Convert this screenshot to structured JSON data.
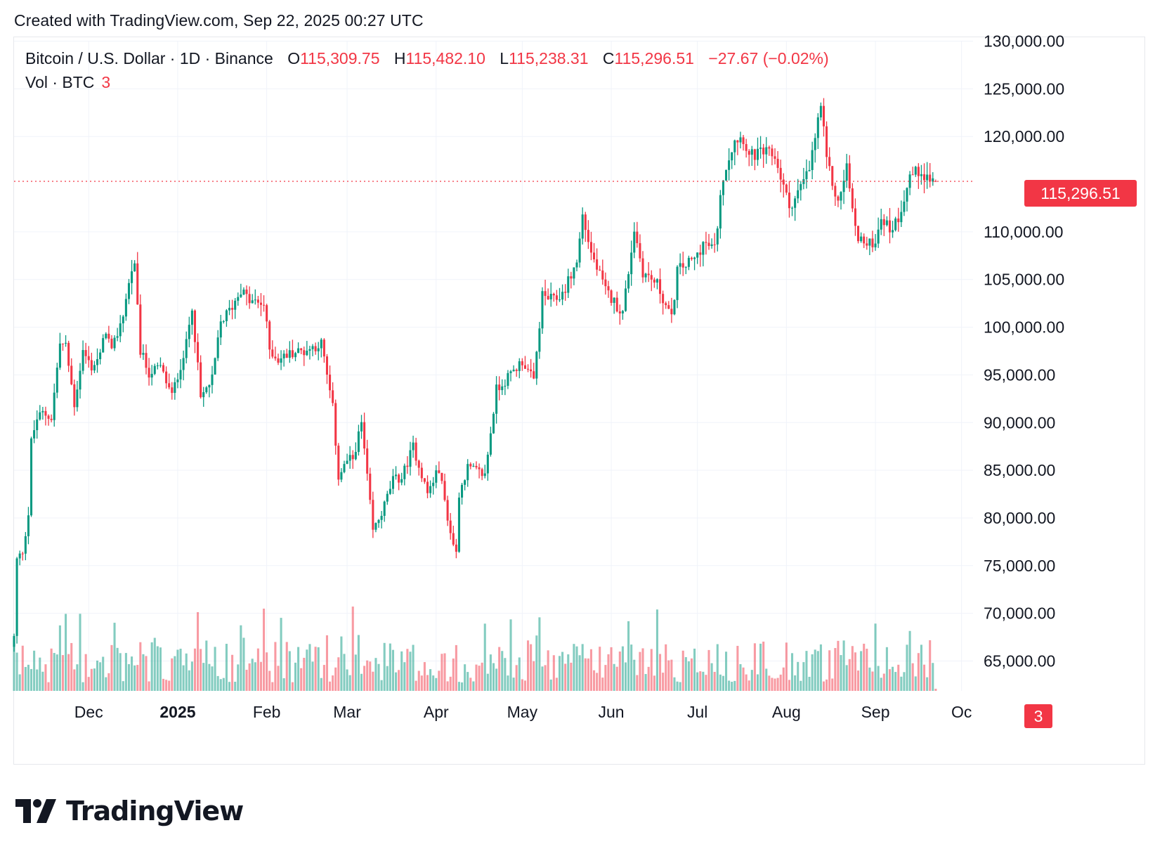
{
  "header": {
    "created_text": "Created with TradingView.com, Sep 22, 2025 00:27 UTC"
  },
  "legend": {
    "symbol": "Bitcoin / U.S. Dollar · 1D · Binance",
    "open_label": "O",
    "open": "115,309.75",
    "high_label": "H",
    "high": "115,482.10",
    "low_label": "L",
    "low": "115,238.31",
    "close_label": "C",
    "close": "115,296.51",
    "change": "−27.67 (−0.02%)",
    "vol_label": "Vol · BTC",
    "vol_value": "3"
  },
  "tags": {
    "last_price": "115,296.51",
    "last_volume": "3"
  },
  "logo": {
    "text": "TradingView"
  },
  "colors": {
    "up": "#089981",
    "down": "#f23645",
    "grid": "#f0f3fa",
    "text": "#131722"
  },
  "chart_data": {
    "type": "candlestick",
    "ylim": [
      65000,
      130000
    ],
    "y_ticks": [
      {
        "value": 130000,
        "label": "130,000.00"
      },
      {
        "value": 125000,
        "label": "125,000.00"
      },
      {
        "value": 120000,
        "label": "120,000.00"
      },
      {
        "value": 110000,
        "label": "110,000.00"
      },
      {
        "value": 105000,
        "label": "105,000.00"
      },
      {
        "value": 100000,
        "label": "100,000.00"
      },
      {
        "value": 95000,
        "label": "95,000.00"
      },
      {
        "value": 90000,
        "label": "90,000.00"
      },
      {
        "value": 85000,
        "label": "85,000.00"
      },
      {
        "value": 80000,
        "label": "80,000.00"
      },
      {
        "value": 75000,
        "label": "75,000.00"
      },
      {
        "value": 70000,
        "label": "70,000.00"
      },
      {
        "value": 65000,
        "label": "65,000.00"
      }
    ],
    "x_ticks": [
      {
        "date": "2024-12-01",
        "label": "Dec",
        "bold": false
      },
      {
        "date": "2025-01-01",
        "label": "2025",
        "bold": true
      },
      {
        "date": "2025-02-01",
        "label": "Feb",
        "bold": false
      },
      {
        "date": "2025-03-01",
        "label": "Mar",
        "bold": false
      },
      {
        "date": "2025-04-01",
        "label": "Apr",
        "bold": false
      },
      {
        "date": "2025-05-01",
        "label": "May",
        "bold": false
      },
      {
        "date": "2025-06-01",
        "label": "Jun",
        "bold": false
      },
      {
        "date": "2025-07-01",
        "label": "Jul",
        "bold": false
      },
      {
        "date": "2025-08-01",
        "label": "Aug",
        "bold": false
      },
      {
        "date": "2025-09-01",
        "label": "Sep",
        "bold": false
      },
      {
        "date": "2025-10-01",
        "label": "Oc",
        "bold": false
      }
    ],
    "x_range": [
      "2024-11-05",
      "2025-10-05"
    ],
    "last_price": 115296.51,
    "series": [
      {
        "name": "Bitcoin / U.S. Dollar",
        "kind": "close",
        "anchors": [
          [
            "2024-11-05",
            67500
          ],
          [
            "2024-11-06",
            75600
          ],
          [
            "2024-11-08",
            76500
          ],
          [
            "2024-11-10",
            80400
          ],
          [
            "2024-11-11",
            88000
          ],
          [
            "2024-11-13",
            90400
          ],
          [
            "2024-11-15",
            91000
          ],
          [
            "2024-11-18",
            90500
          ],
          [
            "2024-11-21",
            98300
          ],
          [
            "2024-11-23",
            98000
          ],
          [
            "2024-11-26",
            91900
          ],
          [
            "2024-11-29",
            97500
          ],
          [
            "2024-12-02",
            95800
          ],
          [
            "2024-12-05",
            97000
          ],
          [
            "2024-12-07",
            99800
          ],
          [
            "2024-12-09",
            97300
          ],
          [
            "2024-12-13",
            101400
          ],
          [
            "2024-12-16",
            106100
          ],
          [
            "2024-12-17",
            106200
          ],
          [
            "2024-12-19",
            97500
          ],
          [
            "2024-12-22",
            95200
          ],
          [
            "2024-12-26",
            95800
          ],
          [
            "2024-12-30",
            92800
          ],
          [
            "2025-01-04",
            98200
          ],
          [
            "2025-01-06",
            102300
          ],
          [
            "2025-01-09",
            92500
          ],
          [
            "2025-01-13",
            94500
          ],
          [
            "2025-01-16",
            100500
          ],
          [
            "2025-01-20",
            102200
          ],
          [
            "2025-01-23",
            104000
          ],
          [
            "2025-01-26",
            102700
          ],
          [
            "2025-01-31",
            102400
          ],
          [
            "2025-02-02",
            97700
          ],
          [
            "2025-02-05",
            96600
          ],
          [
            "2025-02-10",
            97400
          ],
          [
            "2025-02-14",
            97500
          ],
          [
            "2025-02-20",
            98300
          ],
          [
            "2025-02-24",
            91500
          ],
          [
            "2025-02-26",
            84300
          ],
          [
            "2025-03-01",
            86000
          ],
          [
            "2025-03-03",
            86200
          ],
          [
            "2025-03-06",
            89900
          ],
          [
            "2025-03-10",
            78600
          ],
          [
            "2025-03-13",
            80500
          ],
          [
            "2025-03-17",
            84000
          ],
          [
            "2025-03-20",
            84200
          ],
          [
            "2025-03-24",
            87500
          ],
          [
            "2025-03-29",
            82600
          ],
          [
            "2025-04-02",
            85200
          ],
          [
            "2025-04-06",
            78400
          ],
          [
            "2025-04-08",
            76300
          ],
          [
            "2025-04-09",
            82600
          ],
          [
            "2025-04-12",
            85300
          ],
          [
            "2025-04-18",
            84500
          ],
          [
            "2025-04-22",
            93500
          ],
          [
            "2025-04-26",
            94700
          ],
          [
            "2025-05-01",
            96500
          ],
          [
            "2025-05-05",
            94300
          ],
          [
            "2025-05-08",
            103300
          ],
          [
            "2025-05-12",
            102800
          ],
          [
            "2025-05-15",
            103500
          ],
          [
            "2025-05-20",
            106800
          ],
          [
            "2025-05-22",
            111700
          ],
          [
            "2025-05-25",
            107800
          ],
          [
            "2025-05-30",
            103800
          ],
          [
            "2025-06-05",
            101500
          ],
          [
            "2025-06-09",
            110300
          ],
          [
            "2025-06-12",
            105800
          ],
          [
            "2025-06-17",
            104500
          ],
          [
            "2025-06-22",
            100800
          ],
          [
            "2025-06-24",
            106000
          ],
          [
            "2025-06-30",
            107100
          ],
          [
            "2025-07-03",
            108800
          ],
          [
            "2025-07-07",
            108200
          ],
          [
            "2025-07-10",
            116000
          ],
          [
            "2025-07-14",
            119800
          ],
          [
            "2025-07-17",
            119900
          ],
          [
            "2025-07-19",
            117900
          ],
          [
            "2025-07-24",
            118300
          ],
          [
            "2025-07-28",
            117900
          ],
          [
            "2025-08-02",
            112600
          ],
          [
            "2025-08-05",
            114100
          ],
          [
            "2025-08-09",
            116500
          ],
          [
            "2025-08-13",
            123300
          ],
          [
            "2025-08-15",
            117400
          ],
          [
            "2025-08-19",
            112900
          ],
          [
            "2025-08-22",
            116900
          ],
          [
            "2025-08-25",
            110100
          ],
          [
            "2025-08-29",
            108400
          ],
          [
            "2025-09-01",
            109200
          ],
          [
            "2025-09-03",
            111700
          ],
          [
            "2025-09-06",
            110200
          ],
          [
            "2025-09-09",
            111500
          ],
          [
            "2025-09-13",
            115900
          ],
          [
            "2025-09-17",
            116500
          ],
          [
            "2025-09-19",
            115700
          ],
          [
            "2025-09-22",
            115296.51
          ]
        ]
      },
      {
        "name": "Vol · BTC",
        "kind": "volume"
      }
    ]
  }
}
